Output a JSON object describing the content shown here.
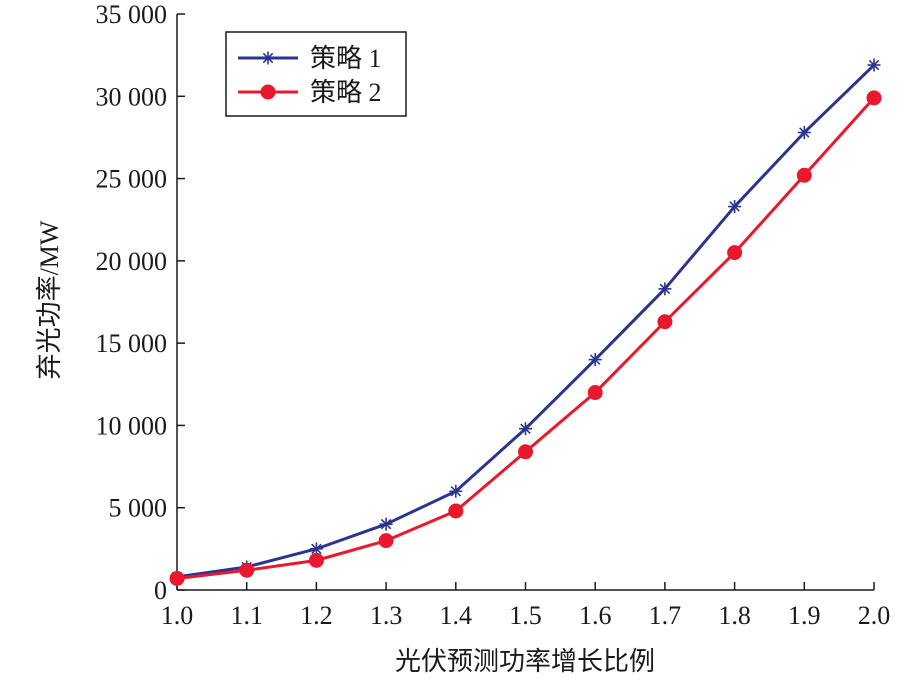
{
  "chart_data": {
    "type": "line",
    "title": "",
    "xlabel": "光伏预测功率增长比例",
    "ylabel": "弃光功率/MW",
    "x": [
      1.0,
      1.1,
      1.2,
      1.3,
      1.4,
      1.5,
      1.6,
      1.7,
      1.8,
      1.9,
      2.0
    ],
    "xlim": [
      1.0,
      2.0
    ],
    "ylim": [
      0,
      35000
    ],
    "x_ticks": [
      "1.0",
      "1.1",
      "1.2",
      "1.3",
      "1.4",
      "1.5",
      "1.6",
      "1.7",
      "1.8",
      "1.9",
      "2.0"
    ],
    "y_ticks": [
      {
        "value": 0,
        "label": "0"
      },
      {
        "value": 5000,
        "label": "5 000"
      },
      {
        "value": 10000,
        "label": "10 000"
      },
      {
        "value": 15000,
        "label": "15 000"
      },
      {
        "value": 20000,
        "label": "20 000"
      },
      {
        "value": 25000,
        "label": "25 000"
      },
      {
        "value": 30000,
        "label": "30 000"
      },
      {
        "value": 35000,
        "label": "35 000"
      }
    ],
    "grid": false,
    "legend_position": "top-left",
    "series": [
      {
        "name": "策略 1",
        "color": "#2b3590",
        "marker": "asterisk",
        "values": [
          800,
          1400,
          2500,
          4000,
          6000,
          9800,
          14000,
          18300,
          23300,
          27800,
          31900
        ]
      },
      {
        "name": "策略 2",
        "color": "#e8192c",
        "marker": "filled-circle",
        "values": [
          700,
          1200,
          1800,
          3000,
          4800,
          8400,
          12000,
          16300,
          20500,
          25200,
          29900
        ]
      }
    ]
  }
}
